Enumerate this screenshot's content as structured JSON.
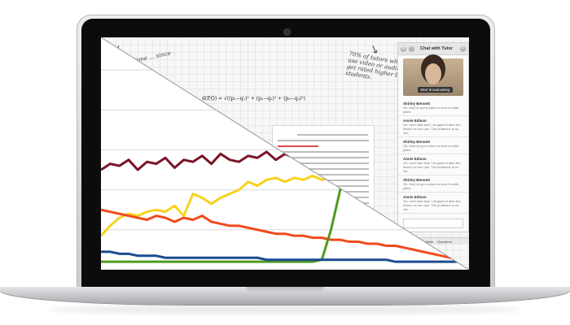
{
  "app": {
    "note_left": "...time ... since",
    "note_right": "70% of tutors who use video or audio get rated higher by students.",
    "formula": "d(P,Q) = √((p₁−q₁)² + (p₂−q₂)² + (p₃−q₃)²)",
    "chat_title": "Chat with Tutor",
    "broadcast_label": "Start broadcasting",
    "messages": [
      {
        "name": "Shirley Bennett",
        "text": "Oh, they've got a class on how to write jokes."
      },
      {
        "name": "Annie Edison",
        "text": "Oh, don't take that. I dropped it after the lesson on sex ups. The professor is so old..."
      },
      {
        "name": "Shirley Bennett",
        "text": "Oh, they've got a class on how to write jokes."
      },
      {
        "name": "Annie Edison",
        "text": "Oh, don't take that. I dropped it after the lesson on sex ups. The professor is so old..."
      },
      {
        "name": "Shirley Bennett",
        "text": "Oh, they've got a class on how to write jokes."
      },
      {
        "name": "Annie Edison",
        "text": "Oh, don't take that. I dropped it after the lesson on sex ups. The professor is so old..."
      }
    ],
    "toolbar": [
      "Calculus",
      "Infinite",
      "Operators"
    ],
    "colors": {
      "grid": "#e9e9e7",
      "accent_red": "#e04b4b"
    }
  },
  "chart_data": {
    "type": "line",
    "title": "",
    "xlabel": "",
    "ylabel": "",
    "x": [
      0,
      1,
      2,
      3,
      4,
      5,
      6,
      7,
      8,
      9,
      10,
      11,
      12,
      13,
      14,
      15,
      16,
      17,
      18,
      19,
      20,
      21,
      22,
      23,
      24,
      25,
      26,
      27,
      28,
      29,
      30,
      31,
      32,
      33,
      34,
      35,
      36,
      37,
      38,
      39,
      40
    ],
    "ylim": [
      0,
      100
    ],
    "grid": true,
    "series": [
      {
        "color": "#7a1428",
        "values": [
          50,
          53,
          52,
          55,
          50,
          54,
          53,
          56,
          51,
          55,
          54,
          57,
          53,
          58,
          55,
          54,
          57,
          56,
          59,
          55,
          58,
          56,
          57,
          55,
          58,
          57,
          56,
          58,
          57,
          56,
          58,
          57,
          58,
          57,
          58,
          57,
          58,
          57,
          58,
          57,
          58
        ]
      },
      {
        "color": "#f7d21e",
        "values": [
          17,
          22,
          26,
          28,
          27,
          29,
          30,
          29,
          32,
          27,
          38,
          36,
          33,
          36,
          38,
          40,
          44,
          42,
          45,
          46,
          44,
          46,
          45,
          47,
          45,
          46,
          47,
          45,
          46,
          47,
          46,
          47,
          46,
          47,
          46,
          47,
          46,
          47,
          46,
          47,
          46
        ]
      },
      {
        "color": "#ef4b1b",
        "values": [
          30,
          29,
          28,
          27,
          26,
          25,
          27,
          26,
          24,
          26,
          25,
          27,
          24,
          23,
          22,
          22,
          21,
          20,
          19,
          18,
          18,
          17,
          17,
          16,
          16,
          15,
          15,
          14,
          14,
          13,
          13,
          12,
          12,
          11,
          10,
          9,
          8,
          7,
          6,
          5,
          4
        ]
      },
      {
        "color": "#4e9a1f",
        "values": [
          4,
          4,
          4,
          4,
          4,
          4,
          4,
          4,
          4,
          4,
          4,
          4,
          4,
          4,
          4,
          4,
          4,
          4,
          4,
          4,
          4,
          4,
          4,
          4,
          5,
          20,
          40,
          56,
          68,
          75,
          80,
          85,
          88,
          90,
          92,
          93,
          94,
          95,
          96,
          96,
          97
        ]
      },
      {
        "color": "#1c4b8f",
        "values": [
          9,
          9,
          8,
          8,
          7,
          7,
          7,
          6,
          6,
          6,
          6,
          6,
          6,
          6,
          6,
          6,
          6,
          6,
          5,
          5,
          5,
          5,
          5,
          5,
          5,
          5,
          5,
          5,
          5,
          5,
          5,
          5,
          4,
          4,
          4,
          4,
          4,
          4,
          4,
          4,
          4
        ]
      }
    ]
  }
}
